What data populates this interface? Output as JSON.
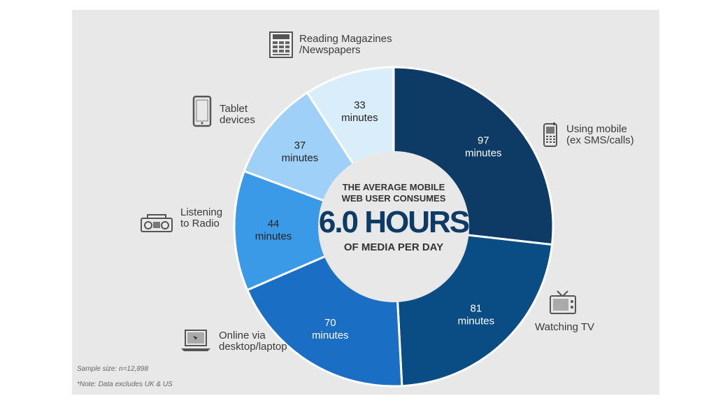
{
  "chart_data": {
    "type": "pie",
    "categories": [
      "Using mobile (ex SMS/calls)",
      "Watching TV",
      "Online via desktop/laptop",
      "Listening to Radio",
      "Tablet devices",
      "Reading Magazines /Newspapers"
    ],
    "values": [
      97,
      81,
      70,
      44,
      37,
      33
    ],
    "unit": "minutes",
    "colors": [
      "#0e3a66",
      "#0a4d85",
      "#1a6fc4",
      "#3a9ae8",
      "#9fd0f7",
      "#d9edfb"
    ],
    "value_text_colors": [
      "#ffffff",
      "#ffffff",
      "#ffffff",
      "#222222",
      "#222222",
      "#222222"
    ]
  },
  "center": {
    "line1": "THE AVERAGE MOBILE",
    "line2": "WEB USER CONSUMES",
    "big": "6.0 HOURS",
    "line3": "OF MEDIA PER DAY"
  },
  "labels": {
    "mobile": [
      "Using mobile",
      "(ex SMS/calls)"
    ],
    "tv": [
      "Watching TV"
    ],
    "desktop": [
      "Online via",
      "desktop/laptop"
    ],
    "radio": [
      "Listening",
      "to Radio"
    ],
    "tablet": [
      "Tablet",
      "devices"
    ],
    "magazines": [
      "Reading Magazines",
      "/Newspapers"
    ]
  },
  "icons": {
    "mobile": "mobile-phone-icon",
    "tv": "tv-icon",
    "desktop": "laptop-icon",
    "radio": "radio-icon",
    "tablet": "tablet-icon",
    "magazines": "newspaper-icon"
  },
  "footnotes": {
    "sample": "Sample size: n=12,898",
    "note": "*Note: Data excludes UK & US"
  }
}
